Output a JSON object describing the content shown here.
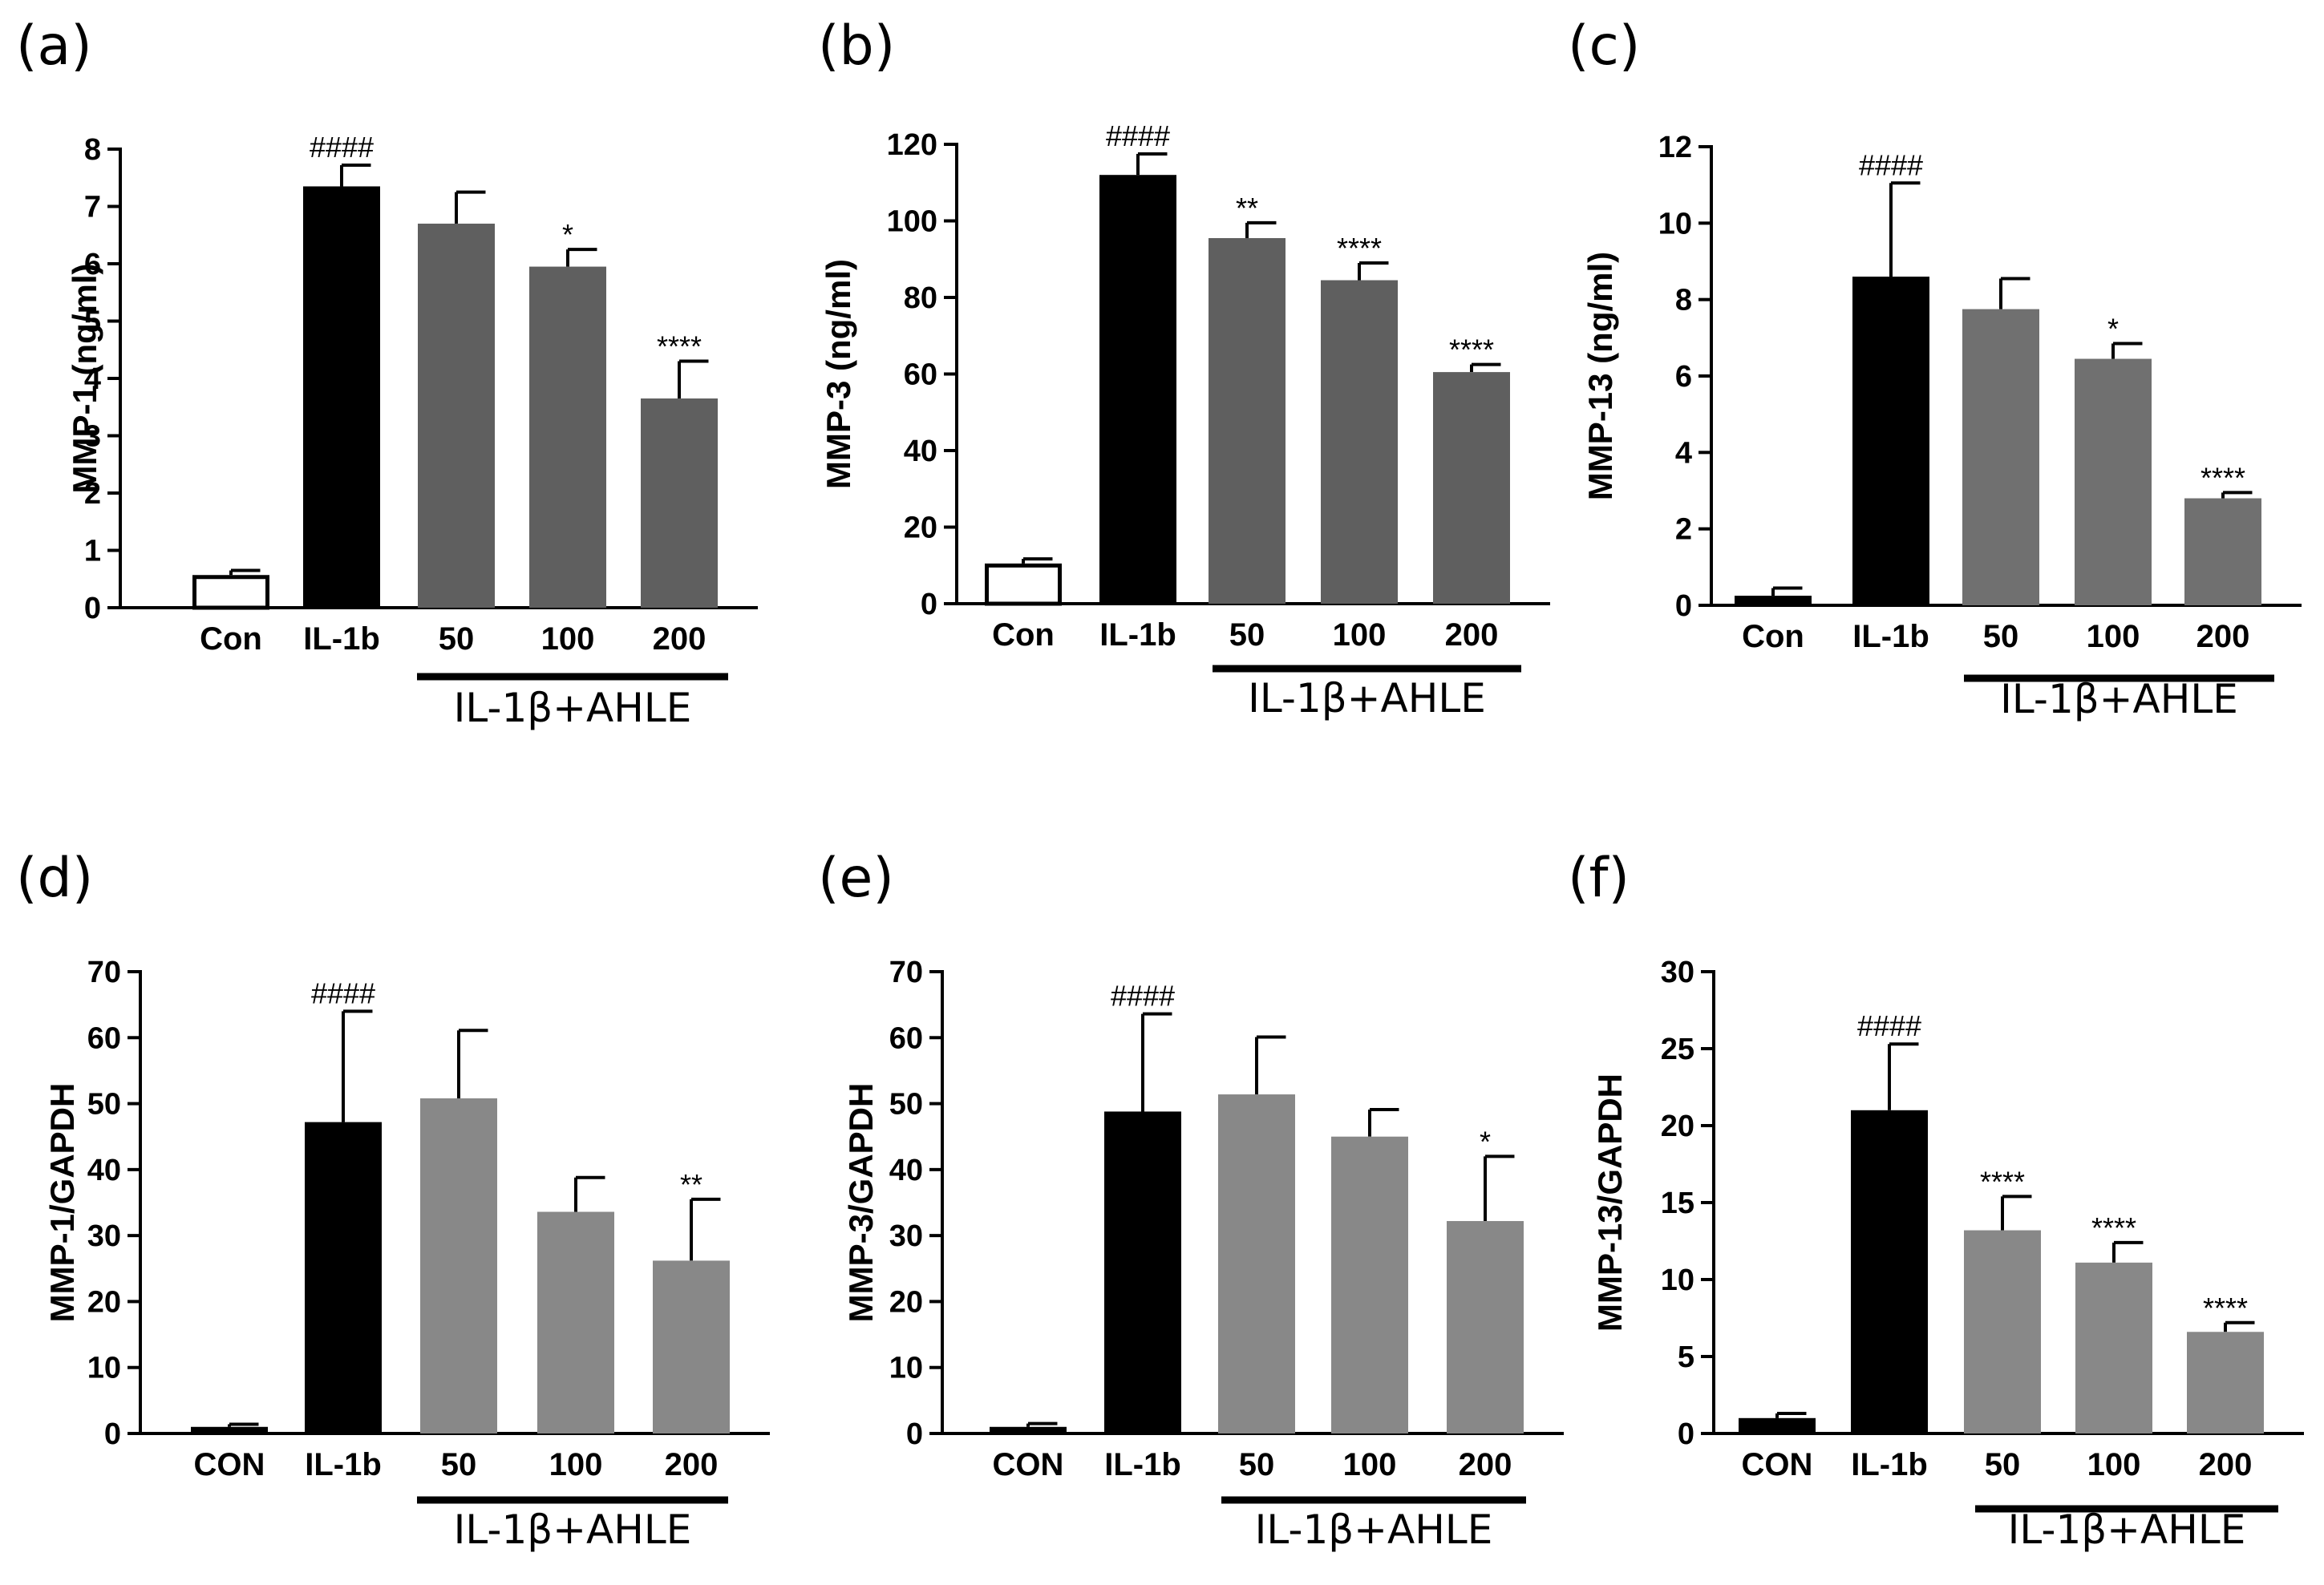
{
  "figure": {
    "description_free": true
  },
  "chart_data": [
    {
      "panel": "(a)",
      "type": "bar",
      "categories": [
        "Con",
        "IL-1b",
        "50",
        "100",
        "200"
      ],
      "values": [
        0.57,
        7.35,
        6.7,
        5.95,
        3.65
      ],
      "errors": [
        0.08,
        0.37,
        0.55,
        0.3,
        0.65
      ],
      "significance": [
        "",
        "####",
        "",
        "*",
        "****"
      ],
      "ylabel": "MMP-1 (ng/ml)",
      "ylim": [
        0,
        8
      ],
      "yticks": [
        0,
        1,
        2,
        3,
        4,
        5,
        6,
        7,
        8
      ],
      "group_label": "IL-1β+AHLE",
      "colors": [
        "#ffffff",
        "#000000",
        "#5f5f5f",
        "#5f5f5f",
        "#5f5f5f"
      ]
    },
    {
      "panel": "(b)",
      "type": "bar",
      "categories": [
        "Con",
        "IL-1b",
        "50",
        "100",
        "200"
      ],
      "values": [
        10.5,
        112,
        95.5,
        84.5,
        60.5
      ],
      "errors": [
        1.2,
        5.5,
        4,
        4.5,
        2
      ],
      "significance": [
        "",
        "####",
        "**",
        "****",
        "****"
      ],
      "ylabel": "MMP-3 (ng/ml)",
      "ylim": [
        0,
        120
      ],
      "yticks": [
        0,
        20,
        40,
        60,
        80,
        100,
        120
      ],
      "group_label": "IL-1β+AHLE",
      "colors": [
        "#ffffff",
        "#000000",
        "#5f5f5f",
        "#5f5f5f",
        "#5f5f5f"
      ]
    },
    {
      "panel": "(c)",
      "type": "bar",
      "categories": [
        "Con",
        "IL-1b",
        "50",
        "100",
        "200"
      ],
      "values": [
        0.25,
        8.6,
        7.75,
        6.45,
        2.8
      ],
      "errors": [
        0.2,
        2.45,
        0.8,
        0.4,
        0.15
      ],
      "significance": [
        "",
        "####",
        "",
        "*",
        "****"
      ],
      "ylabel": "MMP-13 (ng/ml)",
      "ylim": [
        0,
        12
      ],
      "yticks": [
        0,
        2,
        4,
        6,
        8,
        10,
        12
      ],
      "group_label": "IL-1β+AHLE",
      "colors": [
        "#000000",
        "#000000",
        "#707070",
        "#707070",
        "#707070"
      ]
    },
    {
      "panel": "(d)",
      "type": "bar",
      "categories": [
        "CON",
        "IL-1b",
        "50",
        "100",
        "200"
      ],
      "values": [
        1,
        47.2,
        50.8,
        33.6,
        26.2
      ],
      "errors": [
        0.4,
        16.8,
        10.3,
        5.2,
        9.3
      ],
      "significance": [
        "",
        "####",
        "",
        "",
        "**"
      ],
      "ylabel": "MMP-1/GAPDH",
      "ylim": [
        0,
        70
      ],
      "yticks": [
        0,
        10,
        20,
        30,
        40,
        50,
        60,
        70
      ],
      "group_label": "IL-1β+AHLE",
      "colors": [
        "#000000",
        "#000000",
        "#888888",
        "#888888",
        "#888888"
      ]
    },
    {
      "panel": "(e)",
      "type": "bar",
      "categories": [
        "CON",
        "IL-1b",
        "50",
        "100",
        "200"
      ],
      "values": [
        1,
        48.8,
        51.4,
        45,
        32.2
      ],
      "errors": [
        0.5,
        14.8,
        8.7,
        4.1,
        9.8
      ],
      "significance": [
        "",
        "####",
        "",
        "",
        "*"
      ],
      "ylabel": "MMP-3/GAPDH",
      "ylim": [
        0,
        70
      ],
      "yticks": [
        0,
        10,
        20,
        30,
        40,
        50,
        60,
        70
      ],
      "group_label": "IL-1β+AHLE",
      "colors": [
        "#000000",
        "#000000",
        "#888888",
        "#888888",
        "#888888"
      ]
    },
    {
      "panel": "(f)",
      "type": "bar",
      "categories": [
        "CON",
        "IL-1b",
        "50",
        "100",
        "200"
      ],
      "values": [
        1,
        21,
        13.2,
        11.1,
        6.6
      ],
      "errors": [
        0.3,
        4.3,
        2.2,
        1.3,
        0.6
      ],
      "significance": [
        "",
        "####",
        "****",
        "****",
        "****"
      ],
      "ylabel": "MMP-13/GAPDH",
      "ylim": [
        0,
        30
      ],
      "yticks": [
        0,
        5,
        10,
        15,
        20,
        25,
        30
      ],
      "group_label": "IL-1β+AHLE",
      "colors": [
        "#000000",
        "#000000",
        "#888888",
        "#888888",
        "#888888"
      ]
    }
  ]
}
